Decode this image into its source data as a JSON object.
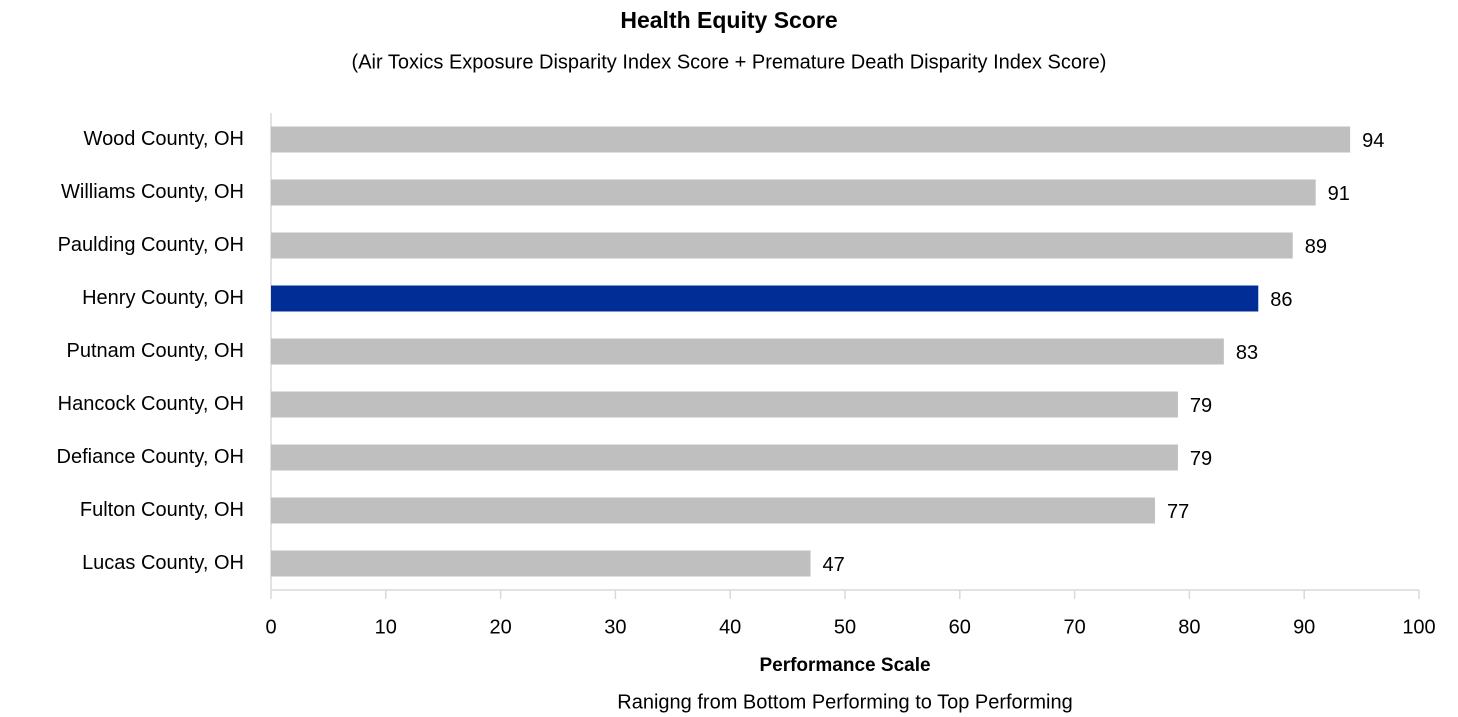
{
  "chart_data": {
    "type": "bar",
    "title": "Health Equity Score",
    "subtitle": "(Air Toxics Exposure Disparity Index Score + Premature Death Disparity Index Score)",
    "xlabel": "Performance Scale",
    "xlabel_note": "Ranigng from Bottom Performing to Top Performing",
    "categories": [
      "Wood County, OH",
      "Williams County, OH",
      "Paulding County, OH",
      "Henry County, OH",
      "Putnam County, OH",
      "Hancock County, OH",
      "Defiance County, OH",
      "Fulton County, OH",
      "Lucas County, OH"
    ],
    "values": [
      94,
      91,
      89,
      86,
      83,
      79,
      79,
      77,
      47
    ],
    "colors": [
      "#bfbfbf",
      "#bfbfbf",
      "#bfbfbf",
      "#002e96",
      "#bfbfbf",
      "#bfbfbf",
      "#bfbfbf",
      "#bfbfbf",
      "#bfbfbf"
    ],
    "xlim": [
      0,
      100
    ],
    "xticks": [
      0,
      10,
      20,
      30,
      40,
      50,
      60,
      70,
      80,
      90,
      100
    ],
    "grid": false
  }
}
